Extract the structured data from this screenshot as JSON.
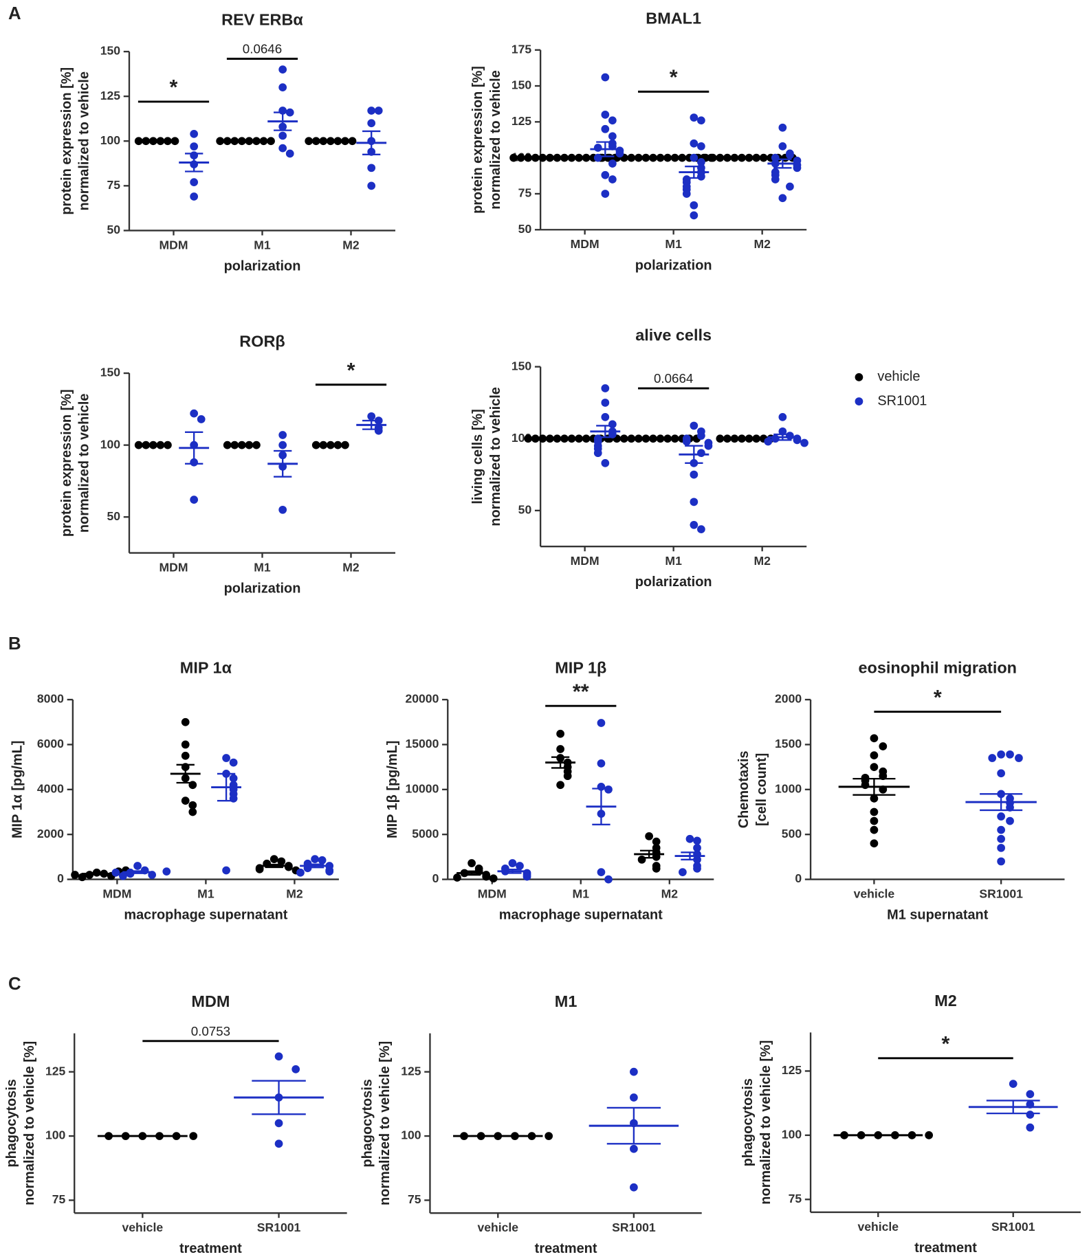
{
  "panels": [
    "A",
    "B",
    "C"
  ],
  "legend": [
    {
      "name": "vehicle",
      "color": "#000000"
    },
    {
      "name": "SR1001",
      "color": "#1c2fc4"
    }
  ],
  "chart_data": [
    {
      "type": "strip",
      "title": "REV ERBα",
      "xlabel": "polarization",
      "ylabel": [
        "protein expression [%]",
        "normalized to vehicle"
      ],
      "categories": [
        "MDM",
        "M1",
        "M2"
      ],
      "ylim": [
        50,
        150
      ],
      "yticks": [
        50,
        75,
        100,
        125,
        150
      ],
      "series": [
        {
          "color": "#000000",
          "values": [
            [
              100,
              100,
              100,
              100,
              100,
              100
            ],
            [
              100,
              100,
              100,
              100,
              100,
              100,
              100,
              100
            ],
            [
              100,
              100,
              100,
              100,
              100,
              100,
              100
            ]
          ],
          "mean": [
            100,
            100,
            100
          ],
          "sem": [
            0,
            0,
            0
          ]
        },
        {
          "color": "#1c2fc4",
          "values": [
            [
              104,
              97,
              92,
              87,
              77,
              69
            ],
            [
              140,
              130,
              117,
              116,
              108,
              103,
              96,
              93
            ],
            [
              117,
              117,
              110,
              100,
              94,
              85,
              75
            ]
          ],
          "mean": [
            88,
            111,
            99
          ],
          "sem": [
            5,
            5,
            6.5
          ]
        }
      ],
      "annotations": [
        {
          "label": "*",
          "y": 122,
          "from": "MDM",
          "to": "MDM"
        },
        {
          "label": "0.0646",
          "y": 146,
          "from": "M1",
          "to": "M1"
        }
      ]
    },
    {
      "type": "strip",
      "title": "BMAL1",
      "xlabel": "polarization",
      "ylabel": [
        "protein expression [%]",
        "normalized to vehicle"
      ],
      "categories": [
        "MDM",
        "M1",
        "M2"
      ],
      "ylim": [
        50,
        175
      ],
      "yticks": [
        50,
        75,
        100,
        125,
        150,
        175
      ],
      "series": [
        {
          "color": "#000000",
          "values": [
            [
              100,
              100,
              100,
              100,
              100,
              100,
              100,
              100,
              100,
              100,
              100,
              100,
              100,
              100,
              100
            ],
            [
              100,
              100,
              100,
              100,
              100,
              100,
              100,
              100,
              100,
              100,
              100,
              100,
              100,
              100,
              100,
              100
            ],
            [
              100,
              100,
              100,
              100,
              100,
              100,
              100,
              100,
              100,
              100,
              100,
              100,
              100,
              100
            ]
          ],
          "mean": [
            100,
            100,
            100
          ],
          "sem": [
            0,
            0,
            0
          ]
        },
        {
          "color": "#1c2fc4",
          "values": [
            [
              156,
              130,
              126,
              120,
              115,
              110,
              108,
              107,
              105,
              103,
              100,
              96,
              88,
              85,
              75
            ],
            [
              128,
              126,
              110,
              108,
              100,
              97,
              93,
              90,
              87,
              85,
              83,
              80,
              78,
              75,
              67,
              60
            ],
            [
              121,
              108,
              103,
              102,
              100,
              98,
              96,
              95,
              93,
              90,
              88,
              85,
              80,
              72
            ]
          ],
          "mean": [
            106,
            90,
            96
          ],
          "sem": [
            5,
            4,
            3
          ]
        }
      ],
      "annotations": [
        {
          "label": "*",
          "y": 146,
          "from": "M1",
          "to": "M1"
        }
      ]
    },
    {
      "type": "strip",
      "title": "RORβ",
      "xlabel": "polarization",
      "ylabel": [
        "protein expression [%]",
        "normalized to vehicle"
      ],
      "categories": [
        "MDM",
        "M1",
        "M2"
      ],
      "ylim": [
        25,
        150
      ],
      "yticks": [
        50,
        100,
        150
      ],
      "series": [
        {
          "color": "#000000",
          "values": [
            [
              100,
              100,
              100,
              100,
              100
            ],
            [
              100,
              100,
              100,
              100,
              100
            ],
            [
              100,
              100,
              100,
              100,
              100
            ]
          ],
          "mean": [
            100,
            100,
            100
          ],
          "sem": [
            0,
            0,
            0
          ]
        },
        {
          "color": "#1c2fc4",
          "values": [
            [
              122,
              118,
              100,
              88,
              62
            ],
            [
              107,
              100,
              93,
              85,
              55
            ],
            [
              120,
              117,
              112,
              110
            ]
          ],
          "mean": [
            98,
            87,
            114
          ],
          "sem": [
            11,
            9,
            3
          ]
        }
      ],
      "annotations": [
        {
          "label": "*",
          "y": 142,
          "from": "M2",
          "to": "M2"
        }
      ]
    },
    {
      "type": "strip",
      "title": "alive cells",
      "xlabel": "polarization",
      "ylabel": [
        "living cells [%]",
        "normalized to vehicle"
      ],
      "categories": [
        "MDM",
        "M1",
        "M2"
      ],
      "ylim": [
        25,
        150
      ],
      "yticks": [
        50,
        100,
        150
      ],
      "series": [
        {
          "color": "#000000",
          "values": [
            [
              100,
              100,
              100,
              100,
              100,
              100,
              100,
              100,
              100,
              100,
              100,
              100
            ],
            [
              100,
              100,
              100,
              100,
              100,
              100,
              100,
              100,
              100,
              100,
              100,
              100,
              100
            ],
            [
              100,
              100,
              100,
              100,
              100,
              100,
              100,
              100
            ]
          ],
          "mean": [
            100,
            100,
            100
          ],
          "sem": [
            0,
            0,
            0
          ]
        },
        {
          "color": "#1c2fc4",
          "values": [
            [
              135,
              125,
              115,
              110,
              105,
              103,
              100,
              98,
              95,
              93,
              90,
              83
            ],
            [
              109,
              105,
              102,
              100,
              98,
              97,
              95,
              90,
              83,
              75,
              56,
              40,
              37
            ],
            [
              115,
              105,
              102,
              100,
              100,
              99,
              98,
              97
            ]
          ],
          "mean": [
            105,
            89,
            101
          ],
          "sem": [
            4,
            6,
            2
          ]
        }
      ],
      "annotations": [
        {
          "label": "0.0664",
          "y": 135,
          "from": "M1",
          "to": "M1"
        }
      ]
    },
    {
      "type": "strip",
      "title": "MIP 1α",
      "xlabel": "macrophage supernatant",
      "ylabel": [
        "MIP 1α [pg/mL]"
      ],
      "categories": [
        "MDM",
        "M1",
        "M2"
      ],
      "ylim": [
        0,
        8000
      ],
      "yticks": [
        0,
        2000,
        4000,
        6000,
        8000
      ],
      "series": [
        {
          "color": "#000000",
          "values": [
            [
              300,
              250,
              200,
              150,
              100,
              350,
              200,
              400
            ],
            [
              7000,
              6000,
              5500,
              5000,
              4500,
              4200,
              3500,
              3300,
              3000
            ],
            [
              900,
              800,
              700,
              600,
              550,
              500,
              450,
              400
            ]
          ],
          "mean": [
            250,
            4700,
            600
          ],
          "sem": [
            40,
            400,
            60
          ]
        },
        {
          "color": "#1c2fc4",
          "values": [
            [
              600,
              400,
              300,
              250,
              200,
              150,
              300,
              350
            ],
            [
              5400,
              5200,
              4700,
              4500,
              4200,
              4000,
              3800,
              3600,
              400
            ],
            [
              900,
              850,
              700,
              600,
              500,
              400,
              350,
              300
            ]
          ],
          "mean": [
            320,
            4100,
            600
          ],
          "sem": [
            50,
            600,
            70
          ]
        }
      ],
      "annotations": []
    },
    {
      "type": "strip",
      "title": "MIP 1β",
      "xlabel": "macrophage supernatant",
      "ylabel": [
        "MIP 1β [pg/mL]"
      ],
      "categories": [
        "MDM",
        "M1",
        "M2"
      ],
      "ylim": [
        0,
        20000
      ],
      "yticks": [
        0,
        5000,
        10000,
        15000,
        20000
      ],
      "series": [
        {
          "color": "#000000",
          "values": [
            [
              1800,
              1200,
              900,
              700,
              500,
              300,
              200,
              100
            ],
            [
              16200,
              14500,
              13500,
              13000,
              12500,
              12000,
              11500,
              10500
            ],
            [
              4800,
              4200,
              3500,
              3000,
              2500,
              2200,
              1500,
              1200
            ]
          ],
          "mean": [
            700,
            13000,
            2800
          ],
          "sem": [
            200,
            600,
            400
          ]
        },
        {
          "color": "#1c2fc4",
          "values": [
            [
              1800,
              1500,
              1200,
              900,
              700,
              500,
              300
            ],
            [
              17400,
              12900,
              10300,
              10000,
              7300,
              800,
              0
            ],
            [
              4500,
              4300,
              3500,
              2800,
              2200,
              1500,
              1200,
              800
            ]
          ],
          "mean": [
            900,
            8100,
            2600
          ],
          "sem": [
            200,
            2000,
            400
          ]
        }
      ],
      "annotations": [
        {
          "label": "**",
          "y": 19300,
          "from": "M1",
          "to": "M1"
        }
      ]
    },
    {
      "type": "strip",
      "title": "eosinophil migration",
      "xlabel": "M1 supernatant",
      "ylabel": [
        "Chemotaxis",
        "[cell count]"
      ],
      "categories": [
        "vehicle",
        "SR1001"
      ],
      "ylim": [
        0,
        2000
      ],
      "yticks": [
        0,
        500,
        1000,
        1500,
        2000
      ],
      "colors": [
        "#000000",
        "#1c2fc4"
      ],
      "values": [
        [
          1570,
          1480,
          1380,
          1250,
          1200,
          1150,
          1130,
          1100,
          1050,
          1000,
          900,
          750,
          650,
          550,
          400
        ],
        [
          1390,
          1390,
          1350,
          1350,
          1180,
          950,
          900,
          850,
          800,
          700,
          650,
          550,
          450,
          350,
          200
        ]
      ],
      "mean": [
        1030,
        860
      ],
      "sem": [
        90,
        90
      ],
      "annotations": [
        {
          "label": "*",
          "y": 1865,
          "from": "vehicle",
          "to": "SR1001"
        }
      ]
    },
    {
      "type": "strip",
      "title": "MDM",
      "xlabel": "treatment",
      "ylabel": [
        "phagocytosis",
        "normalized to vehicle [%]"
      ],
      "categories": [
        "vehicle",
        "SR1001"
      ],
      "ylim": [
        70,
        140
      ],
      "yticks": [
        75,
        100,
        125
      ],
      "colors": [
        "#000000",
        "#1c2fc4"
      ],
      "values": [
        [
          100,
          100,
          100,
          100,
          100,
          100
        ],
        [
          131,
          126,
          115,
          105,
          97
        ]
      ],
      "mean": [
        100,
        115
      ],
      "sem": [
        0,
        6.5
      ],
      "annotations": [
        {
          "label": "0.0753",
          "y": 137,
          "from": "vehicle",
          "to": "SR1001"
        }
      ]
    },
    {
      "type": "strip",
      "title": "M1",
      "xlabel": "treatment",
      "ylabel": [
        "phagocytosis",
        "normalized to vehicle [%]"
      ],
      "categories": [
        "vehicle",
        "SR1001"
      ],
      "ylim": [
        70,
        140
      ],
      "yticks": [
        75,
        100,
        125
      ],
      "colors": [
        "#000000",
        "#1c2fc4"
      ],
      "values": [
        [
          100,
          100,
          100,
          100,
          100,
          100
        ],
        [
          125,
          115,
          105,
          95,
          80
        ]
      ],
      "mean": [
        100,
        104
      ],
      "sem": [
        0,
        7
      ],
      "annotations": []
    },
    {
      "type": "strip",
      "title": "M2",
      "xlabel": "treatment",
      "ylabel": [
        "phagocytosis",
        "normalized to vehicle [%]"
      ],
      "categories": [
        "vehicle",
        "SR1001"
      ],
      "ylim": [
        70,
        140
      ],
      "yticks": [
        75,
        100,
        125
      ],
      "colors": [
        "#000000",
        "#1c2fc4"
      ],
      "values": [
        [
          100,
          100,
          100,
          100,
          100,
          100
        ],
        [
          120,
          116,
          112,
          108,
          103
        ]
      ],
      "mean": [
        100,
        111
      ],
      "sem": [
        0,
        2.5
      ],
      "annotations": [
        {
          "label": "*",
          "y": 130,
          "from": "vehicle",
          "to": "SR1001"
        }
      ]
    }
  ]
}
